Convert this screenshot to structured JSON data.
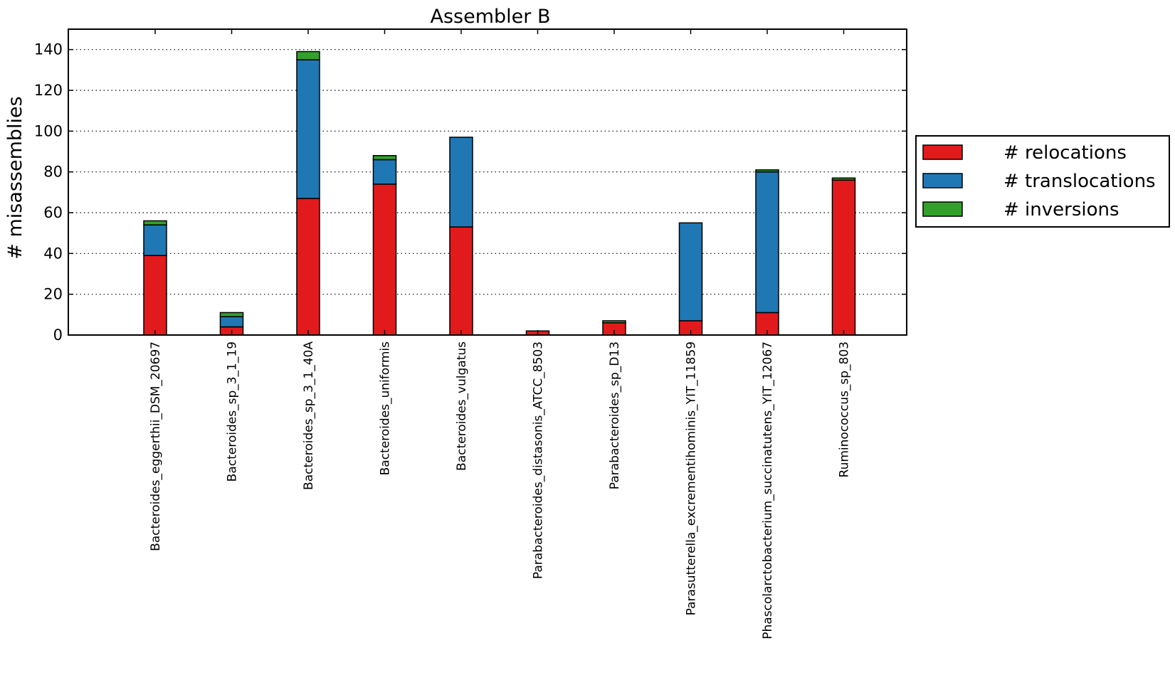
{
  "chart_data": {
    "type": "bar",
    "stacked": true,
    "title": "Assembler B",
    "xlabel": "",
    "ylabel": "# misassemblies",
    "ylim": [
      0,
      150
    ],
    "yticks": [
      "0",
      "20",
      "40",
      "60",
      "80",
      "100",
      "120",
      "140"
    ],
    "grid": "horizontal dotted",
    "legend_position": "right",
    "categories": [
      "Bacteroides_eggerthii_DSM_20697",
      "Bacteroides_sp_3_1_19",
      "Bacteroides_sp_3_1_40A",
      "Bacteroides_uniformis",
      "Bacteroides_vulgatus",
      "Parabacteroides_distasonis_ATCC_8503",
      "Parabacteroides_sp_D13",
      "Parasutterella_excrementihominis_YIT_11859",
      "Phascolarctobacterium_succinatutens_YIT_12067",
      "Ruminococcus_sp_803"
    ],
    "series": [
      {
        "name": "# relocations",
        "color": "#e31a1c",
        "values": [
          39,
          4,
          67,
          74,
          53,
          2,
          6,
          7,
          11,
          76
        ]
      },
      {
        "name": "# translocations",
        "color": "#1f78b4",
        "values": [
          15,
          5,
          68,
          12,
          44,
          0,
          0,
          48,
          69,
          0
        ]
      },
      {
        "name": "# inversions",
        "color": "#33a02c",
        "values": [
          2,
          2,
          4,
          2,
          0,
          0,
          1,
          0,
          1,
          1
        ]
      }
    ]
  }
}
